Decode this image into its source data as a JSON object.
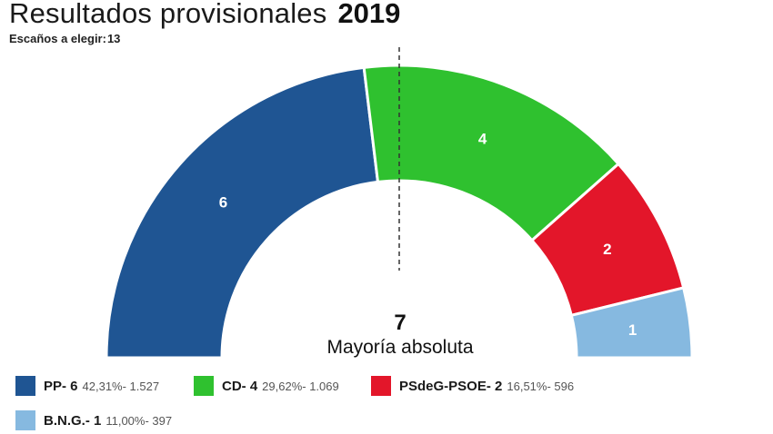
{
  "header": {
    "title": "Resultados provisionales",
    "year": "2019",
    "seats_label": "Escaños a elegir:",
    "seats_total": "13"
  },
  "majority": {
    "value": "7",
    "label": "Mayoría absoluta"
  },
  "legend": [
    {
      "name": "PP- 6",
      "detail": "42,31%- 1.527",
      "color": "#1f5593"
    },
    {
      "name": "CD- 4",
      "detail": "29,62%- 1.069",
      "color": "#2fc12f"
    },
    {
      "name": "PSdeG-PSOE- 2",
      "detail": "16,51%- 596",
      "color": "#e3162a"
    },
    {
      "name": "B.N.G.- 1",
      "detail": "11,00%- 397",
      "color": "#86b9e0"
    }
  ],
  "chart_data": {
    "type": "pie",
    "total_seats": 13,
    "majority": 7,
    "categories": [
      "PP",
      "CD",
      "PSdeG-PSOE",
      "B.N.G."
    ],
    "values": [
      6,
      4,
      2,
      1
    ],
    "labels": [
      "6",
      "4",
      "2",
      "1"
    ],
    "colors": [
      "#1f5593",
      "#2fc12f",
      "#e3162a",
      "#86b9e0"
    ]
  }
}
